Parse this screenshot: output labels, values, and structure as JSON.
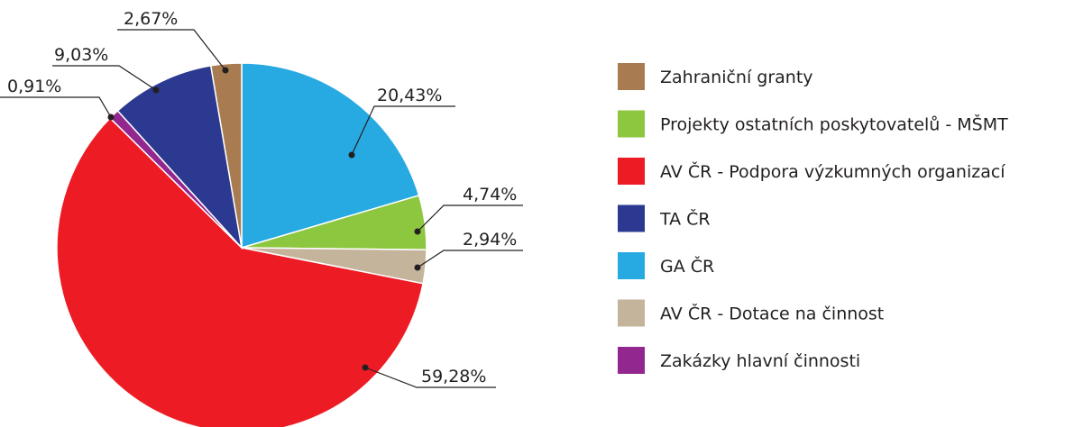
{
  "chart_data": {
    "type": "pie",
    "categories": [
      "GA ČR",
      "Projekty ostatních poskytovatelů - MŠMT",
      "AV ČR - Dotace na činnost",
      "AV ČR - Podpora výzkumných organizací",
      "Zakázky hlavní činnosti",
      "TA ČR",
      "Zahraniční granty"
    ],
    "values": [
      20.43,
      4.74,
      2.94,
      59.28,
      0.91,
      9.03,
      2.67
    ],
    "value_labels": [
      "20,43%",
      "4,74%",
      "2,94%",
      "59,28%",
      "0,91%",
      "9,03%",
      "2,67%"
    ],
    "colors": [
      "#27aae1",
      "#8dc63f",
      "#c4b49c",
      "#ed1c24",
      "#92278f",
      "#2b3990",
      "#a87b50"
    ],
    "legend": "right"
  }
}
